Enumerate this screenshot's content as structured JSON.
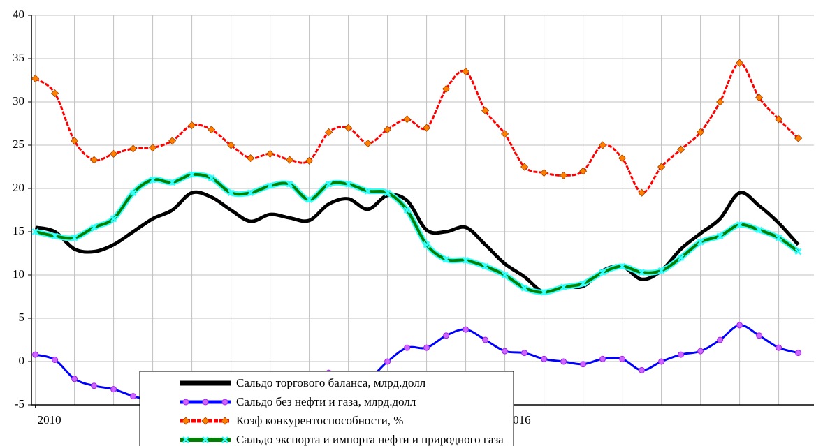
{
  "chart_data": {
    "type": "line",
    "x": [
      2010,
      2010.25,
      2010.5,
      2010.75,
      2011,
      2011.25,
      2011.5,
      2011.75,
      2012,
      2012.25,
      2012.5,
      2012.75,
      2013,
      2013.25,
      2013.5,
      2013.75,
      2014,
      2014.25,
      2014.5,
      2014.75,
      2015,
      2015.25,
      2015.5,
      2015.75,
      2016,
      2016.25,
      2016.5,
      2016.75,
      2017,
      2017.25,
      2017.5,
      2017.75,
      2018,
      2018.25,
      2018.5,
      2018.75,
      2019,
      2019.25,
      2019.5,
      2019.75
    ],
    "series": [
      {
        "name": "Сальдо торгового баланса, млрд.долл",
        "color": "#000000",
        "marker": "none",
        "width": 5,
        "values": [
          15.5,
          15,
          13,
          12.7,
          13.5,
          15,
          16.5,
          17.5,
          19.5,
          19,
          17.5,
          16.2,
          17,
          16.6,
          16.3,
          18.2,
          18.8,
          17.6,
          19.2,
          18.6,
          15.2,
          15,
          15.5,
          13.5,
          11.3,
          9.8,
          8,
          8.7,
          8.7,
          10.5,
          11,
          9.5,
          10.5,
          13,
          14.8,
          16.5,
          19.5,
          18,
          16,
          13.5
        ]
      },
      {
        "name": "Сальдо без нефти и газа, млрд.долл",
        "color": "#0000ff",
        "marker": "circle",
        "marker_color": "#cc66ff",
        "width": 3,
        "values": [
          0.8,
          0.2,
          -2,
          -2.8,
          -3.2,
          -4,
          -4.5,
          -4.5,
          -4,
          -3.5,
          -3,
          -2.5,
          -2,
          -1.8,
          -1.5,
          -1.3,
          -1.8,
          -2,
          0,
          1.6,
          1.6,
          3,
          3.7,
          2.5,
          1.2,
          1,
          0.3,
          0,
          -0.3,
          0.3,
          0.3,
          -1,
          0,
          0.8,
          1.2,
          2.5,
          4.2,
          3,
          1.6,
          1
        ]
      },
      {
        "name": "Коэф конкурентоспособности, %",
        "color": "#ff0000",
        "marker": "diamond",
        "marker_color": "#ff8000",
        "width": 3,
        "values": [
          32.7,
          31,
          25.5,
          23.3,
          24,
          24.6,
          24.7,
          25.5,
          27.3,
          26.8,
          25,
          23.5,
          24,
          23.3,
          23.2,
          26.5,
          27,
          25.2,
          26.8,
          28,
          27,
          31.5,
          33.5,
          29,
          26.3,
          22.5,
          21.8,
          21.5,
          22,
          25,
          23.5,
          19.5,
          22.5,
          24.5,
          26.5,
          30,
          34.5,
          30.5,
          28,
          25.8
        ]
      },
      {
        "name": "Сальдо экспорта и импорта нефти и природного газа",
        "color": "#008000",
        "marker": "x",
        "marker_color": "#33ffff",
        "width": 4,
        "values": [
          15,
          14.5,
          14.3,
          15.5,
          16.5,
          19.5,
          21,
          20.7,
          21.6,
          21.2,
          19.5,
          19.5,
          20.3,
          20.5,
          18.7,
          20.5,
          20.5,
          19.7,
          19.5,
          17.5,
          13.5,
          11.8,
          11.7,
          11,
          10,
          8.5,
          8,
          8.6,
          9,
          10.3,
          11,
          10.3,
          10.5,
          12,
          13.8,
          14.5,
          15.8,
          15.2,
          14.3,
          12.7
        ]
      }
    ],
    "xlim": [
      2009.95,
      2019.95
    ],
    "xticks": [
      2010,
      2016
    ],
    "x_grid": [
      2010,
      2010.5,
      2011,
      2011.5,
      2012,
      2012.5,
      2013,
      2013.5,
      2014,
      2014.5,
      2015,
      2015.5,
      2016,
      2016.5,
      2017,
      2017.5,
      2018,
      2018.5,
      2019,
      2019.5
    ],
    "ylim": [
      -5,
      40
    ],
    "yticks": [
      -5,
      0,
      5,
      10,
      15,
      20,
      25,
      30,
      35,
      40
    ],
    "grid": true
  }
}
